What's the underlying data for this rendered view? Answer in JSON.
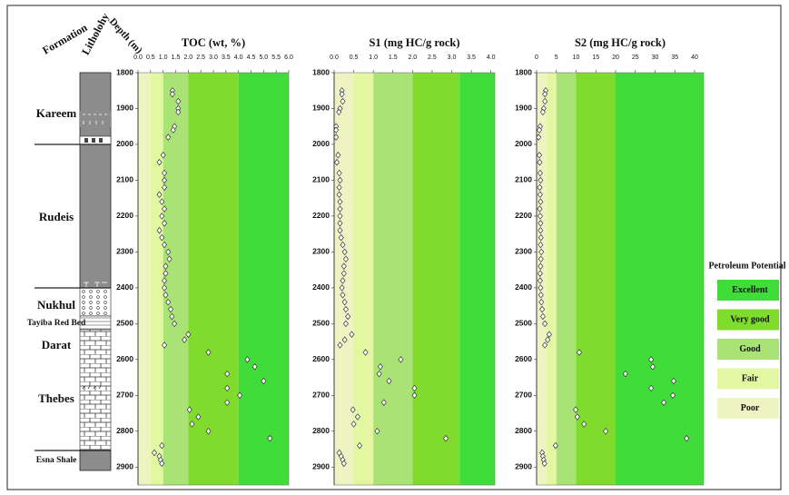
{
  "headers": {
    "formation": "Formation",
    "lithology": "Litholohy",
    "depth": "Depth (m)"
  },
  "formations": [
    "Kareem",
    "Rudeis",
    "Nukhul",
    "Tayiba Red Bed",
    "Darat",
    "Thebes",
    "Esna Shale"
  ],
  "legend": {
    "title": "Petroleum Potential",
    "items": [
      {
        "name": "Excellent",
        "color": "#3fdc3a"
      },
      {
        "name": "Very good",
        "color": "#7fdc2c"
      },
      {
        "name": "Good",
        "color": "#a9e375"
      },
      {
        "name": "Fair",
        "color": "#e3f6a2"
      },
      {
        "name": "Poor",
        "color": "#eef3c2"
      }
    ]
  },
  "chart_data": [
    {
      "type": "scatter",
      "title": "TOC (wt, %)",
      "xlim": [
        0,
        6
      ],
      "xticks": [
        {
          "value": 0,
          "label": "0.0"
        },
        0.5,
        {
          "value": 1,
          "label": "1.0"
        },
        1.5,
        {
          "value": 2,
          "label": "2.0"
        },
        2.5,
        {
          "value": 3,
          "label": "3.0"
        },
        3.5,
        {
          "value": 4,
          "label": "4.0"
        },
        4.5,
        {
          "value": 5,
          "label": "5.0"
        },
        5.5,
        {
          "value": 6,
          "label": "6.0"
        }
      ],
      "ylim": [
        1800,
        2950
      ],
      "yticks": [
        1800,
        1900,
        2000,
        2100,
        2200,
        2300,
        2400,
        2500,
        2600,
        2700,
        2800,
        2900
      ],
      "y_reversed": true,
      "zone_bounds": [
        0.5,
        1,
        2,
        4
      ],
      "y": [
        1850,
        1860,
        1880,
        1900,
        1910,
        1950,
        1960,
        1980,
        2030,
        2050,
        2080,
        2100,
        2120,
        2140,
        2160,
        2180,
        2200,
        2220,
        2240,
        2260,
        2280,
        2300,
        2320,
        2340,
        2360,
        2380,
        2400,
        2420,
        2440,
        2460,
        2480,
        2500,
        2530,
        2545,
        2560,
        2580,
        2600,
        2620,
        2640,
        2660,
        2680,
        2700,
        2720,
        2740,
        2760,
        2780,
        2800,
        2820,
        2840,
        2860,
        2870,
        2880,
        2890
      ],
      "x": [
        1.37,
        1.37,
        1.6,
        1.6,
        1.6,
        1.45,
        1.4,
        1.2,
        1.0,
        0.85,
        1.05,
        1.05,
        1.05,
        0.85,
        0.95,
        1.05,
        0.95,
        1.05,
        0.85,
        0.95,
        1.05,
        1.2,
        1.25,
        1.1,
        1.1,
        1.05,
        1.05,
        1.1,
        1.2,
        1.3,
        1.35,
        1.45,
        2.0,
        1.85,
        1.05,
        2.8,
        4.35,
        4.65,
        3.55,
        5.0,
        3.55,
        4.05,
        3.55,
        2.05,
        2.4,
        2.15,
        2.8,
        5.25,
        0.95,
        0.65,
        0.85,
        0.9,
        0.95
      ]
    },
    {
      "type": "scatter",
      "title": "S1 (mg HC/g  rock)",
      "xlim": [
        0,
        4.1
      ],
      "xticks": [
        {
          "value": 0,
          "label": "0.0"
        },
        0.5,
        {
          "value": 1,
          "label": "1.0"
        },
        1.5,
        {
          "value": 2,
          "label": "2.0"
        },
        2.5,
        {
          "value": 3,
          "label": "3.0"
        },
        3.5,
        {
          "value": 4,
          "label": "4.0"
        }
      ],
      "ylim": [
        1800,
        2950
      ],
      "yticks": [
        1800,
        1900,
        2000,
        2100,
        2200,
        2300,
        2400,
        2500,
        2600,
        2700,
        2800,
        2900
      ],
      "y_reversed": true,
      "zone_bounds": [
        0.5,
        1,
        2,
        3.2
      ],
      "y": [
        1850,
        1860,
        1880,
        1900,
        1910,
        1950,
        1960,
        1980,
        2030,
        2050,
        2080,
        2100,
        2120,
        2140,
        2160,
        2180,
        2200,
        2220,
        2240,
        2260,
        2280,
        2300,
        2320,
        2340,
        2360,
        2380,
        2400,
        2420,
        2440,
        2460,
        2480,
        2500,
        2530,
        2545,
        2560,
        2580,
        2600,
        2620,
        2640,
        2660,
        2680,
        2700,
        2720,
        2740,
        2760,
        2780,
        2800,
        2820,
        2840,
        2860,
        2870,
        2880,
        2890
      ],
      "x": [
        0.2,
        0.2,
        0.22,
        0.15,
        0.12,
        0.05,
        0.05,
        0.05,
        0.1,
        0.07,
        0.13,
        0.15,
        0.13,
        0.13,
        0.15,
        0.15,
        0.15,
        0.15,
        0.15,
        0.18,
        0.22,
        0.27,
        0.3,
        0.25,
        0.25,
        0.22,
        0.2,
        0.22,
        0.27,
        0.3,
        0.35,
        0.3,
        0.45,
        0.27,
        0.15,
        0.8,
        1.7,
        1.18,
        1.15,
        1.4,
        2.05,
        2.05,
        1.27,
        0.48,
        0.6,
        0.5,
        1.1,
        2.85,
        0.65,
        0.13,
        0.18,
        0.22,
        0.25
      ]
    },
    {
      "type": "scatter",
      "title": "S2  (mg HC/g  rock)",
      "xlim": [
        0,
        42.3
      ],
      "xticks": [
        0,
        5,
        10,
        15,
        20,
        25,
        30,
        35,
        40
      ],
      "ylim": [
        1800,
        2950
      ],
      "yticks": [
        1800,
        1900,
        2000,
        2100,
        2200,
        2300,
        2400,
        2500,
        2600,
        2700,
        2800,
        2900
      ],
      "y_reversed": true,
      "zone_bounds": [
        2.5,
        5,
        10,
        20
      ],
      "y": [
        1850,
        1860,
        1880,
        1900,
        1910,
        1950,
        1960,
        1980,
        2030,
        2050,
        2080,
        2100,
        2120,
        2140,
        2160,
        2180,
        2200,
        2220,
        2240,
        2260,
        2280,
        2300,
        2320,
        2340,
        2360,
        2380,
        2400,
        2420,
        2440,
        2460,
        2480,
        2500,
        2530,
        2545,
        2560,
        2580,
        2600,
        2620,
        2640,
        2660,
        2680,
        2700,
        2720,
        2740,
        2760,
        2780,
        2800,
        2820,
        2840,
        2860,
        2870,
        2880,
        2890
      ],
      "x": [
        2.3,
        2.1,
        2.1,
        1.8,
        1.6,
        0.9,
        0.7,
        0.5,
        0.7,
        0.8,
        0.9,
        1.0,
        0.8,
        0.9,
        1.0,
        0.8,
        0.9,
        1.0,
        1.0,
        1.1,
        1.0,
        1.2,
        1.1,
        1.0,
        0.9,
        0.9,
        1.0,
        1.1,
        1.2,
        1.4,
        1.6,
        2.1,
        3.2,
        2.8,
        2.1,
        10.8,
        29,
        29.4,
        22.5,
        34.7,
        29,
        34.5,
        32.2,
        9.9,
        10.3,
        12,
        17.5,
        38,
        4.8,
        1.4,
        1.6,
        1.8,
        2
      ]
    }
  ]
}
